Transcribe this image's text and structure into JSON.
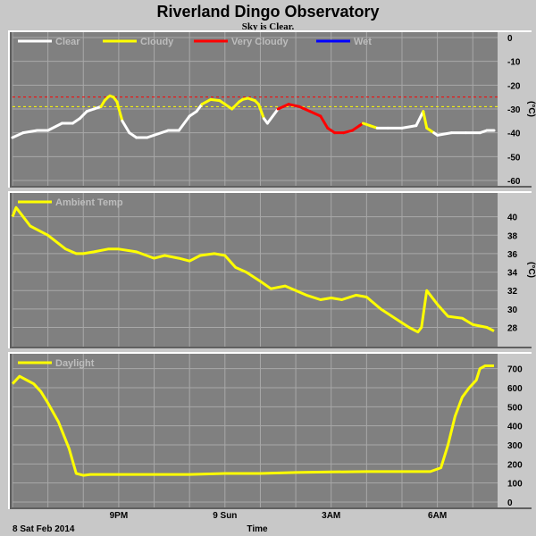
{
  "title": "Riverland Dingo Observatory",
  "subtitle": "Sky is Clear.",
  "date_label": "8 Sat Feb 2014",
  "x_axis_title": "Time",
  "x_ticks": [
    {
      "label": "9PM",
      "hour": 21
    },
    {
      "label": "9 Sun",
      "hour": 24
    },
    {
      "label": "3AM",
      "hour": 27
    },
    {
      "label": "6AM",
      "hour": 30
    }
  ],
  "colors": {
    "background": "#c8c8c8",
    "plot_bg": "#808080",
    "grid": "#a8a8a8",
    "clear": "#ffffff",
    "cloudy": "#ffff00",
    "very_cloudy": "#ff0000",
    "wet": "#0000ff"
  },
  "chart_data": [
    {
      "type": "line",
      "x_unit": "hour",
      "x_range": [
        18.0,
        31.7
      ],
      "ylim": [
        -60,
        0
      ],
      "yticks": [
        0,
        -10,
        -20,
        -30,
        -40,
        -50,
        -60
      ],
      "ylabel": "(°C)",
      "grid": true,
      "legend": [
        {
          "label": "Clear",
          "color": "#ffffff"
        },
        {
          "label": "Cloudy",
          "color": "#ffff00"
        },
        {
          "label": "Very Cloudy",
          "color": "#ff0000"
        },
        {
          "label": "Wet",
          "color": "#0000ff"
        }
      ],
      "thresholds": [
        {
          "value": -25,
          "color": "#ff0000"
        },
        {
          "value": -29,
          "color": "#ffff00"
        }
      ],
      "series": [
        {
          "x": [
            18.0,
            18.3,
            18.7,
            19.0,
            19.4,
            19.7,
            19.9,
            20.1,
            20.3,
            20.5,
            20.6,
            20.7,
            20.75,
            20.85,
            20.95,
            21.1,
            21.3,
            21.5,
            21.8,
            22.0,
            22.4,
            22.7,
            23.0,
            23.2,
            23.35,
            23.6,
            23.85,
            24.0,
            24.2,
            24.4,
            24.5,
            24.65,
            24.75,
            24.85,
            24.95,
            25.1,
            25.2,
            25.5,
            25.8,
            26.1,
            26.4,
            26.7,
            26.9,
            27.1,
            27.35,
            27.6,
            27.8,
            27.9,
            28.1,
            28.3,
            28.6,
            29.0,
            29.4,
            29.6,
            29.7,
            29.9,
            30.0,
            30.4,
            30.8,
            31.2,
            31.4,
            31.6
          ],
          "y": [
            -42,
            -40,
            -39,
            -39,
            -36,
            -36,
            -34,
            -31,
            -30,
            -29,
            -26.5,
            -25,
            -24.5,
            -25,
            -27,
            -35,
            -40,
            -42,
            -42,
            -41,
            -39,
            -39,
            -33,
            -31,
            -28,
            -26,
            -26.5,
            -28,
            -30,
            -27,
            -26,
            -25.5,
            -26,
            -26.5,
            -28,
            -34,
            -36,
            -30,
            -28,
            -29,
            -31,
            -33,
            -38,
            -40,
            -40,
            -39,
            -37,
            -36,
            -37,
            -38,
            -38,
            -38,
            -37,
            -31,
            -38,
            -40,
            -41,
            -40,
            -40,
            -40,
            -39,
            -39
          ],
          "colors": [
            "#ffffff",
            "#ffffff",
            "#ffffff",
            "#ffffff",
            "#ffffff",
            "#ffffff",
            "#ffffff",
            "#ffffff",
            "#ffffff",
            "#ffff00",
            "#ffff00",
            "#ffff00",
            "#ffff00",
            "#ffff00",
            "#ffff00",
            "#ffffff",
            "#ffffff",
            "#ffffff",
            "#ffffff",
            "#ffffff",
            "#ffffff",
            "#ffffff",
            "#ffffff",
            "#ffffff",
            "#ffff00",
            "#ffff00",
            "#ffff00",
            "#ffff00",
            "#ffff00",
            "#ffff00",
            "#ffff00",
            "#ffff00",
            "#ffff00",
            "#ffff00",
            "#ffff00",
            "#ffffff",
            "#ffffff",
            "#ff0000",
            "#ff0000",
            "#ff0000",
            "#ff0000",
            "#ff0000",
            "#ff0000",
            "#ff0000",
            "#ff0000",
            "#ff0000",
            "#ff0000",
            "#ffff00",
            "#ffff00",
            "#ffffff",
            "#ffffff",
            "#ffffff",
            "#ffffff",
            "#ffff00",
            "#ffff00",
            "#ffffff",
            "#ffffff",
            "#ffffff",
            "#ffffff",
            "#ffffff",
            "#ffffff",
            "#ffffff"
          ]
        }
      ]
    },
    {
      "type": "line",
      "x_unit": "hour",
      "x_range": [
        18.0,
        31.7
      ],
      "ylim": [
        26.5,
        42
      ],
      "yticks": [
        40,
        38,
        36,
        34,
        32,
        30,
        28
      ],
      "ylabel": "(°C)",
      "grid": true,
      "legend": [
        {
          "label": "Ambient Temp",
          "color": "#ffff00"
        }
      ],
      "series": [
        {
          "name": "Ambient Temp",
          "x": [
            18.0,
            18.1,
            18.3,
            18.5,
            19.0,
            19.5,
            19.8,
            20.0,
            20.3,
            20.7,
            21.0,
            21.5,
            22.0,
            22.3,
            22.7,
            23.0,
            23.3,
            23.7,
            24.0,
            24.3,
            24.6,
            25.0,
            25.3,
            25.7,
            26.0,
            26.3,
            26.7,
            27.0,
            27.3,
            27.7,
            28.0,
            28.4,
            28.8,
            29.2,
            29.45,
            29.55,
            29.7,
            30.0,
            30.3,
            30.7,
            31.0,
            31.4,
            31.6
          ],
          "y": [
            40,
            41,
            40,
            39,
            38,
            36.5,
            36,
            36,
            36.2,
            36.5,
            36.5,
            36.2,
            35.5,
            35.8,
            35.5,
            35.2,
            35.8,
            36,
            35.8,
            34.5,
            34,
            33,
            32.2,
            32.5,
            32,
            31.5,
            31,
            31.2,
            31,
            31.5,
            31.3,
            30,
            29,
            28,
            27.5,
            28,
            32,
            30.5,
            29.2,
            29,
            28.3,
            28,
            27.6
          ]
        }
      ]
    },
    {
      "type": "line",
      "x_unit": "hour",
      "x_range": [
        18.0,
        31.7
      ],
      "ylim": [
        0,
        750
      ],
      "yticks": [
        700,
        600,
        500,
        400,
        300,
        200,
        100,
        0
      ],
      "grid": true,
      "legend": [
        {
          "label": "Daylight",
          "color": "#ffff00"
        }
      ],
      "series": [
        {
          "name": "Daylight",
          "x": [
            18.0,
            18.2,
            18.4,
            18.6,
            18.8,
            19.0,
            19.3,
            19.6,
            19.8,
            20.0,
            20.2,
            20.5,
            21.0,
            22.0,
            23.0,
            24.0,
            25.0,
            26.0,
            27.0,
            28.0,
            29.0,
            29.8,
            30.1,
            30.3,
            30.5,
            30.7,
            30.9,
            31.1,
            31.2,
            31.35,
            31.6
          ],
          "y": [
            620,
            660,
            640,
            620,
            580,
            520,
            420,
            280,
            150,
            140,
            145,
            145,
            145,
            145,
            145,
            150,
            150,
            155,
            158,
            160,
            160,
            160,
            180,
            300,
            450,
            550,
            600,
            640,
            700,
            715,
            715
          ]
        }
      ]
    }
  ]
}
